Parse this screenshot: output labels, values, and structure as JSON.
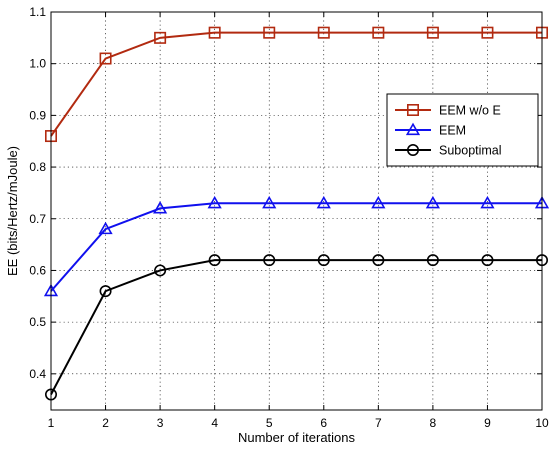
{
  "chart_data": {
    "type": "line",
    "xlabel": "Number of iterations",
    "ylabel": "EE (bits/Hertz/mJoule)",
    "x": [
      1,
      2,
      3,
      4,
      5,
      6,
      7,
      8,
      9,
      10
    ],
    "xlim": [
      1,
      10
    ],
    "ylim": [
      0.33,
      1.1
    ],
    "xticks": [
      "1",
      "2",
      "3",
      "4",
      "5",
      "6",
      "7",
      "8",
      "9",
      "10"
    ],
    "yticks": [
      "0.4",
      "0.5",
      "0.6",
      "0.7",
      "0.8",
      "0.9",
      "1.0",
      "1.1"
    ],
    "grid": true,
    "legend_position": "right",
    "series": [
      {
        "name": "EEM w/o E",
        "color": "#b22a10",
        "marker": "square",
        "values": [
          0.86,
          1.01,
          1.05,
          1.06,
          1.06,
          1.06,
          1.06,
          1.06,
          1.06,
          1.06
        ]
      },
      {
        "name": "EEM",
        "color": "#1010ee",
        "marker": "triangle",
        "values": [
          0.56,
          0.68,
          0.72,
          0.73,
          0.73,
          0.73,
          0.73,
          0.73,
          0.73,
          0.73
        ]
      },
      {
        "name": "Suboptimal",
        "color": "#000000",
        "marker": "circle",
        "values": [
          0.36,
          0.56,
          0.6,
          0.62,
          0.62,
          0.62,
          0.62,
          0.62,
          0.62,
          0.62
        ]
      }
    ]
  }
}
